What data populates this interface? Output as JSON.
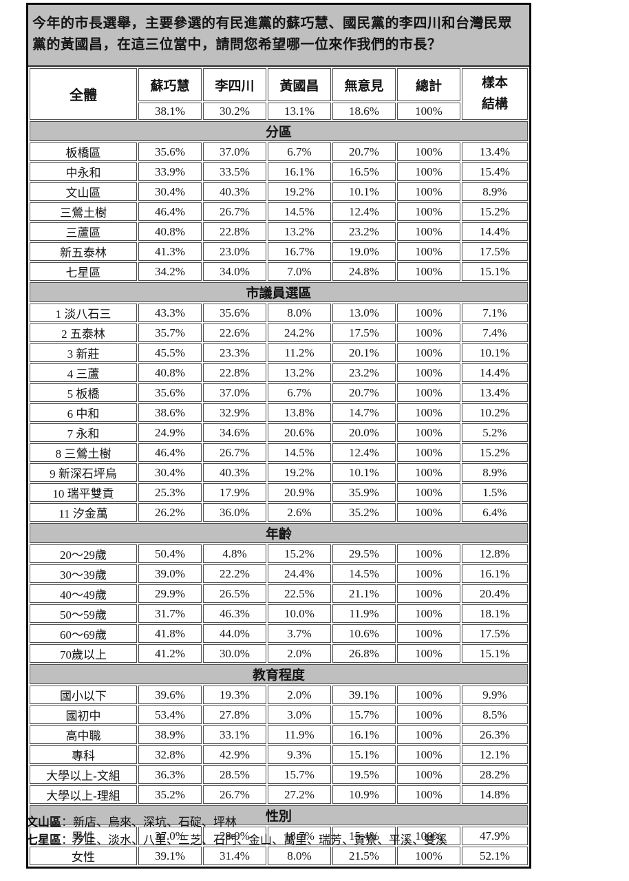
{
  "title": "今年的市長選舉，主要參選的有民進黨的蘇巧慧、國民黨的李四川和台灣民眾黨的黃國昌，在這三位當中，請問您希望哪一位來作我們的市長？",
  "table": {
    "header": {
      "col0": "全體",
      "candidates": [
        "蘇巧慧",
        "李四川",
        "黃國昌",
        "無意見",
        "總計"
      ],
      "overall": [
        "38.1%",
        "30.2%",
        "13.1%",
        "18.6%",
        "100%"
      ],
      "sample_label": "樣本結構"
    },
    "sections": [
      {
        "label": "分區",
        "rows": [
          {
            "label": "板橋區",
            "values": [
              "35.6%",
              "37.0%",
              "6.7%",
              "20.7%",
              "100%",
              "13.4%"
            ]
          },
          {
            "label": "中永和",
            "values": [
              "33.9%",
              "33.5%",
              "16.1%",
              "16.5%",
              "100%",
              "15.4%"
            ]
          },
          {
            "label": "文山區",
            "values": [
              "30.4%",
              "40.3%",
              "19.2%",
              "10.1%",
              "100%",
              "8.9%"
            ]
          },
          {
            "label": "三鶯土樹",
            "values": [
              "46.4%",
              "26.7%",
              "14.5%",
              "12.4%",
              "100%",
              "15.2%"
            ]
          },
          {
            "label": "三蘆區",
            "values": [
              "40.8%",
              "22.8%",
              "13.2%",
              "23.2%",
              "100%",
              "14.4%"
            ]
          },
          {
            "label": "新五泰林",
            "values": [
              "41.3%",
              "23.0%",
              "16.7%",
              "19.0%",
              "100%",
              "17.5%"
            ]
          },
          {
            "label": "七星區",
            "values": [
              "34.2%",
              "34.0%",
              "7.0%",
              "24.8%",
              "100%",
              "15.1%"
            ]
          }
        ]
      },
      {
        "label": "市議員選區",
        "rows": [
          {
            "label": "1 淡八石三",
            "values": [
              "43.3%",
              "35.6%",
              "8.0%",
              "13.0%",
              "100%",
              "7.1%"
            ]
          },
          {
            "label": "2 五泰林",
            "values": [
              "35.7%",
              "22.6%",
              "24.2%",
              "17.5%",
              "100%",
              "7.4%"
            ]
          },
          {
            "label": "3 新莊",
            "values": [
              "45.5%",
              "23.3%",
              "11.2%",
              "20.1%",
              "100%",
              "10.1%"
            ]
          },
          {
            "label": "4 三蘆",
            "values": [
              "40.8%",
              "22.8%",
              "13.2%",
              "23.2%",
              "100%",
              "14.4%"
            ]
          },
          {
            "label": "5 板橋",
            "values": [
              "35.6%",
              "37.0%",
              "6.7%",
              "20.7%",
              "100%",
              "13.4%"
            ]
          },
          {
            "label": "6 中和",
            "values": [
              "38.6%",
              "32.9%",
              "13.8%",
              "14.7%",
              "100%",
              "10.2%"
            ]
          },
          {
            "label": "7 永和",
            "values": [
              "24.9%",
              "34.6%",
              "20.6%",
              "20.0%",
              "100%",
              "5.2%"
            ]
          },
          {
            "label": "8 三鶯土樹",
            "values": [
              "46.4%",
              "26.7%",
              "14.5%",
              "12.4%",
              "100%",
              "15.2%"
            ]
          },
          {
            "label": "9 新深石坪烏",
            "values": [
              "30.4%",
              "40.3%",
              "19.2%",
              "10.1%",
              "100%",
              "8.9%"
            ]
          },
          {
            "label": "10 瑞平雙貢",
            "values": [
              "25.3%",
              "17.9%",
              "20.9%",
              "35.9%",
              "100%",
              "1.5%"
            ]
          },
          {
            "label": "11 汐金萬",
            "values": [
              "26.2%",
              "36.0%",
              "2.6%",
              "35.2%",
              "100%",
              "6.4%"
            ]
          }
        ]
      },
      {
        "label": "年齡",
        "rows": [
          {
            "label": "20～29歲",
            "values": [
              "50.4%",
              "4.8%",
              "15.2%",
              "29.5%",
              "100%",
              "12.8%"
            ]
          },
          {
            "label": "30～39歲",
            "values": [
              "39.0%",
              "22.2%",
              "24.4%",
              "14.5%",
              "100%",
              "16.1%"
            ]
          },
          {
            "label": "40～49歲",
            "values": [
              "29.9%",
              "26.5%",
              "22.5%",
              "21.1%",
              "100%",
              "20.4%"
            ]
          },
          {
            "label": "50～59歲",
            "values": [
              "31.7%",
              "46.3%",
              "10.0%",
              "11.9%",
              "100%",
              "18.1%"
            ]
          },
          {
            "label": "60～69歲",
            "values": [
              "41.8%",
              "44.0%",
              "3.7%",
              "10.6%",
              "100%",
              "17.5%"
            ]
          },
          {
            "label": "70歲以上",
            "values": [
              "41.2%",
              "30.0%",
              "2.0%",
              "26.8%",
              "100%",
              "15.1%"
            ]
          }
        ]
      },
      {
        "label": "教育程度",
        "rows": [
          {
            "label": "國小以下",
            "values": [
              "39.6%",
              "19.3%",
              "2.0%",
              "39.1%",
              "100%",
              "9.9%"
            ]
          },
          {
            "label": "國初中",
            "values": [
              "53.4%",
              "27.8%",
              "3.0%",
              "15.7%",
              "100%",
              "8.5%"
            ]
          },
          {
            "label": "高中職",
            "values": [
              "38.9%",
              "33.1%",
              "11.9%",
              "16.1%",
              "100%",
              "26.3%"
            ]
          },
          {
            "label": "專科",
            "values": [
              "32.8%",
              "42.9%",
              "9.3%",
              "15.1%",
              "100%",
              "12.1%"
            ]
          },
          {
            "label": "大學以上-文組",
            "values": [
              "36.3%",
              "28.5%",
              "15.7%",
              "19.5%",
              "100%",
              "28.2%"
            ]
          },
          {
            "label": "大學以上-理組",
            "values": [
              "35.2%",
              "26.7%",
              "27.2%",
              "10.9%",
              "100%",
              "14.8%"
            ]
          }
        ]
      },
      {
        "label": "性別",
        "rows": [
          {
            "label": "男性",
            "values": [
              "37.0%",
              "28.9%",
              "18.7%",
              "15.4%",
              "100%",
              "47.9%"
            ]
          },
          {
            "label": "女性",
            "values": [
              "39.1%",
              "31.4%",
              "8.0%",
              "21.5%",
              "100%",
              "52.1%"
            ]
          }
        ]
      }
    ]
  },
  "footnotes": [
    {
      "label": "文山區",
      "text": "：新店、烏來、深坑、石碇、坪林"
    },
    {
      "label": "七星區",
      "text": "：汐止、淡水、八里、三芝、石門、金山、萬里、瑞芳、貢寮、平溪、雙溪"
    }
  ]
}
